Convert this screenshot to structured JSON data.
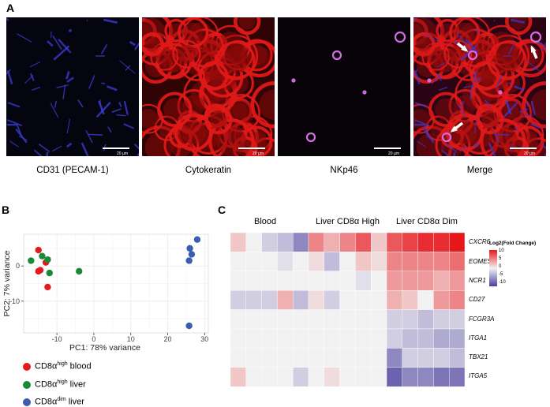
{
  "panels": {
    "a": "A",
    "b": "B",
    "c": "C"
  },
  "micrographs": [
    {
      "label": "CD31 (PECAM-1)",
      "scale": "20 µm",
      "channel": "blue"
    },
    {
      "label": "Cytokeratin",
      "scale": "20 µm",
      "channel": "red"
    },
    {
      "label": "NKp46",
      "scale": "20 µm",
      "channel": "magenta"
    },
    {
      "label": "Merge",
      "scale": "20 µm",
      "channel": "merge"
    }
  ],
  "colors": {
    "blood": "#e41a1c",
    "liver_high": "#1a8a3a",
    "liver_dim": "#3a5db0",
    "hm_high": "#e8161b",
    "hm_mid": "#f2f2f2",
    "hm_low": "#4b3f9e"
  },
  "pca": {
    "xlabel": "PC1: 78% variance",
    "ylabel": "PC2: 7% variance",
    "xticks": [
      -10,
      0,
      10,
      20,
      30
    ],
    "yticks": [
      0,
      -10
    ],
    "xlim": [
      -19,
      31
    ],
    "ylim": [
      -19,
      9
    ]
  },
  "legend": [
    {
      "base": "CD8α",
      "sup": "high",
      "rest": " blood",
      "color_key": "blood"
    },
    {
      "base": "CD8α",
      "sup": "high",
      "rest": " liver",
      "color_key": "liver_high"
    },
    {
      "base": "CD8α",
      "sup": "dim",
      "rest": " liver",
      "color_key": "liver_dim"
    }
  ],
  "heatmap": {
    "groups": [
      "Blood",
      "Liver CD8α High",
      "Liver CD8α Dim"
    ],
    "genes": [
      "CXCR6",
      "EOMES",
      "NCR1",
      "CD27",
      "FCGR3A",
      "ITGA1",
      "TBX21",
      "ITGA5"
    ],
    "colorbar_title": "Log2(Fold Change)",
    "colorbar_ticks": [
      "10",
      "5",
      "0",
      "-5",
      "-10"
    ]
  },
  "chart_data": [
    {
      "type": "scatter",
      "title": "",
      "xlabel": "PC1: 78% variance",
      "ylabel": "PC2: 7% variance",
      "xlim": [
        -19,
        31
      ],
      "ylim": [
        -19,
        9
      ],
      "grid": true,
      "legend_position": "bottom",
      "series": [
        {
          "name": "CD8αhigh blood",
          "points": [
            [
              -15,
              4.5
            ],
            [
              -15,
              -1.5
            ],
            [
              -14.5,
              -1.2
            ],
            [
              -13,
              1
            ],
            [
              -12.5,
              -6
            ]
          ]
        },
        {
          "name": "CD8αhigh liver",
          "points": [
            [
              -17,
              1.5
            ],
            [
              -14,
              2.8
            ],
            [
              -12.5,
              1.8
            ],
            [
              -12,
              -2
            ],
            [
              -4,
              -1.5
            ]
          ]
        },
        {
          "name": "CD8αdim liver",
          "points": [
            [
              26,
              5
            ],
            [
              28,
              7.5
            ],
            [
              26.5,
              3.3
            ],
            [
              25.8,
              1.5
            ],
            [
              25.8,
              -17
            ]
          ]
        }
      ]
    },
    {
      "type": "heatmap",
      "title": "",
      "columns_groups": [
        "Blood",
        "Liver CD8α High",
        "Liver CD8α Dim"
      ],
      "rows": [
        "CXCR6",
        "EOMES",
        "NCR1",
        "CD27",
        "FCGR3A",
        "ITGA1",
        "TBX21",
        "ITGA5"
      ],
      "color_range": [
        -10,
        10
      ],
      "values": [
        [
          2,
          0,
          -2,
          -3,
          -6,
          5,
          3,
          5,
          7,
          2,
          7,
          8,
          9,
          9,
          10
        ],
        [
          0,
          0,
          0,
          -1,
          0,
          1,
          -3,
          0,
          2,
          1,
          5,
          5,
          5,
          5,
          6
        ],
        [
          0,
          0,
          0,
          0,
          0,
          0,
          0,
          0,
          -1,
          0,
          4,
          4,
          4,
          3,
          4
        ],
        [
          -2,
          -2,
          -2,
          3,
          -3,
          1,
          -2,
          0,
          0,
          0,
          3,
          2,
          0,
          4,
          5
        ],
        [
          0,
          0,
          0,
          0,
          0,
          0,
          0,
          0,
          0,
          0,
          -2,
          -2,
          -3,
          -2,
          -2
        ],
        [
          0,
          0,
          0,
          0,
          0,
          0,
          0,
          0,
          0,
          0,
          -2,
          -3,
          -3,
          -4,
          -4
        ],
        [
          0,
          0,
          0,
          0,
          0,
          0,
          0,
          0,
          0,
          0,
          -6,
          -2,
          -2,
          -2,
          -3
        ],
        [
          2,
          0,
          0,
          0,
          -2,
          0,
          1,
          0,
          0,
          0,
          -8,
          -6,
          -6,
          -7,
          -7
        ]
      ]
    }
  ]
}
